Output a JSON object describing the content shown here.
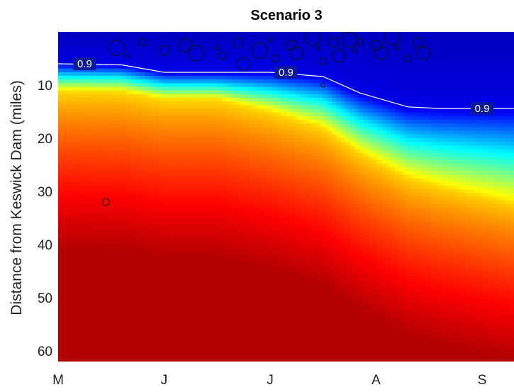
{
  "chart_data": {
    "type": "heatmap",
    "title": "Scenario 3",
    "xlabel": "",
    "ylabel": "Distance from Keswick Dam (miles)",
    "x_ticks": [
      "M",
      "J",
      "J",
      "A",
      "S"
    ],
    "y_ticks": [
      10,
      20,
      30,
      40,
      50,
      60
    ],
    "ylim": [
      0,
      62
    ],
    "y_reversed": true,
    "colormap": "jet",
    "contour": {
      "level_label": "0.9",
      "line_color": "#ffffff",
      "months": [
        0,
        0.6,
        1.0,
        1.5,
        2.0,
        2.5,
        2.85,
        3.3,
        3.6,
        3.9,
        4.3
      ],
      "miles": [
        6,
        6.2,
        7.6,
        7.6,
        7.6,
        8.4,
        11.5,
        14.1,
        14.4,
        14.4,
        14.4
      ],
      "label_positions": [
        [
          0.25,
          6
        ],
        [
          2.15,
          7.6
        ],
        [
          4.0,
          14.4
        ]
      ]
    },
    "markers_note": "open circles marking observations clustered near 0-8 miles from late May through mid August",
    "markers": [
      [
        1.5,
        3
      ],
      [
        1.55,
        4.5
      ],
      [
        1.7,
        2
      ],
      [
        1.75,
        6
      ],
      [
        1.9,
        3.5
      ],
      [
        2.0,
        1.5
      ],
      [
        2.05,
        5
      ],
      [
        2.2,
        2.5
      ],
      [
        2.25,
        4
      ],
      [
        2.4,
        1
      ],
      [
        2.45,
        3
      ],
      [
        2.5,
        5.5
      ],
      [
        2.6,
        2
      ],
      [
        2.65,
        4.5
      ],
      [
        2.75,
        1.5
      ],
      [
        2.8,
        3.5
      ],
      [
        2.85,
        2
      ],
      [
        3.0,
        2.5
      ],
      [
        3.05,
        4
      ],
      [
        3.15,
        1
      ],
      [
        3.2,
        3
      ],
      [
        3.3,
        5
      ],
      [
        3.4,
        2
      ],
      [
        3.45,
        4
      ],
      [
        0.55,
        3
      ],
      [
        0.65,
        4.5
      ],
      [
        0.8,
        2
      ],
      [
        1.0,
        3.5
      ],
      [
        1.2,
        2.5
      ],
      [
        1.3,
        4
      ],
      [
        2.5,
        10
      ],
      [
        0.45,
        32
      ]
    ]
  }
}
